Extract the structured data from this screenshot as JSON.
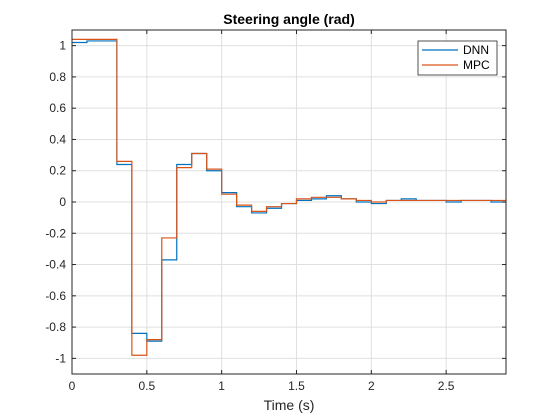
{
  "chart_data": {
    "type": "line",
    "title": "Steering angle (rad)",
    "xlabel": "Time (s)",
    "ylabel": "",
    "xlim": [
      0,
      2.9
    ],
    "ylim": [
      -1.1,
      1.1
    ],
    "xticks": [
      0,
      0.5,
      1,
      1.5,
      2,
      2.5
    ],
    "xtick_labels": [
      "0",
      "0.5",
      "1",
      "1.5",
      "2",
      "2.5"
    ],
    "yticks": [
      1,
      0.8,
      0.6,
      0.4,
      0.2,
      0,
      -0.2,
      -0.4,
      -0.6,
      -0.8,
      -1
    ],
    "ytick_labels": [
      "1",
      "0.8",
      "0.6",
      "0.4",
      "0.2",
      "0",
      "-0.2",
      "-0.4",
      "-0.6",
      "-0.8",
      "-1"
    ],
    "grid": true,
    "legend_position": "top-right",
    "step_interval": 0.1,
    "series": [
      {
        "name": "DNN",
        "color": "#0072BD",
        "values": [
          1.02,
          1.03,
          1.03,
          0.24,
          -0.84,
          -0.89,
          -0.37,
          0.24,
          0.31,
          0.2,
          0.06,
          -0.03,
          -0.07,
          -0.04,
          -0.01,
          0.01,
          0.02,
          0.04,
          0.02,
          0.0,
          -0.01,
          0.01,
          0.02,
          0.01,
          0.01,
          0.0,
          0.01,
          0.01,
          0.0,
          0.0
        ]
      },
      {
        "name": "MPC",
        "color": "#D95319",
        "values": [
          1.04,
          1.04,
          1.04,
          0.26,
          -0.98,
          -0.88,
          -0.23,
          0.22,
          0.31,
          0.21,
          0.05,
          -0.02,
          -0.06,
          -0.03,
          -0.01,
          0.02,
          0.03,
          0.03,
          0.02,
          0.01,
          0.0,
          0.01,
          0.01,
          0.01,
          0.01,
          0.01,
          0.01,
          0.01,
          0.01,
          0.01
        ]
      }
    ]
  }
}
